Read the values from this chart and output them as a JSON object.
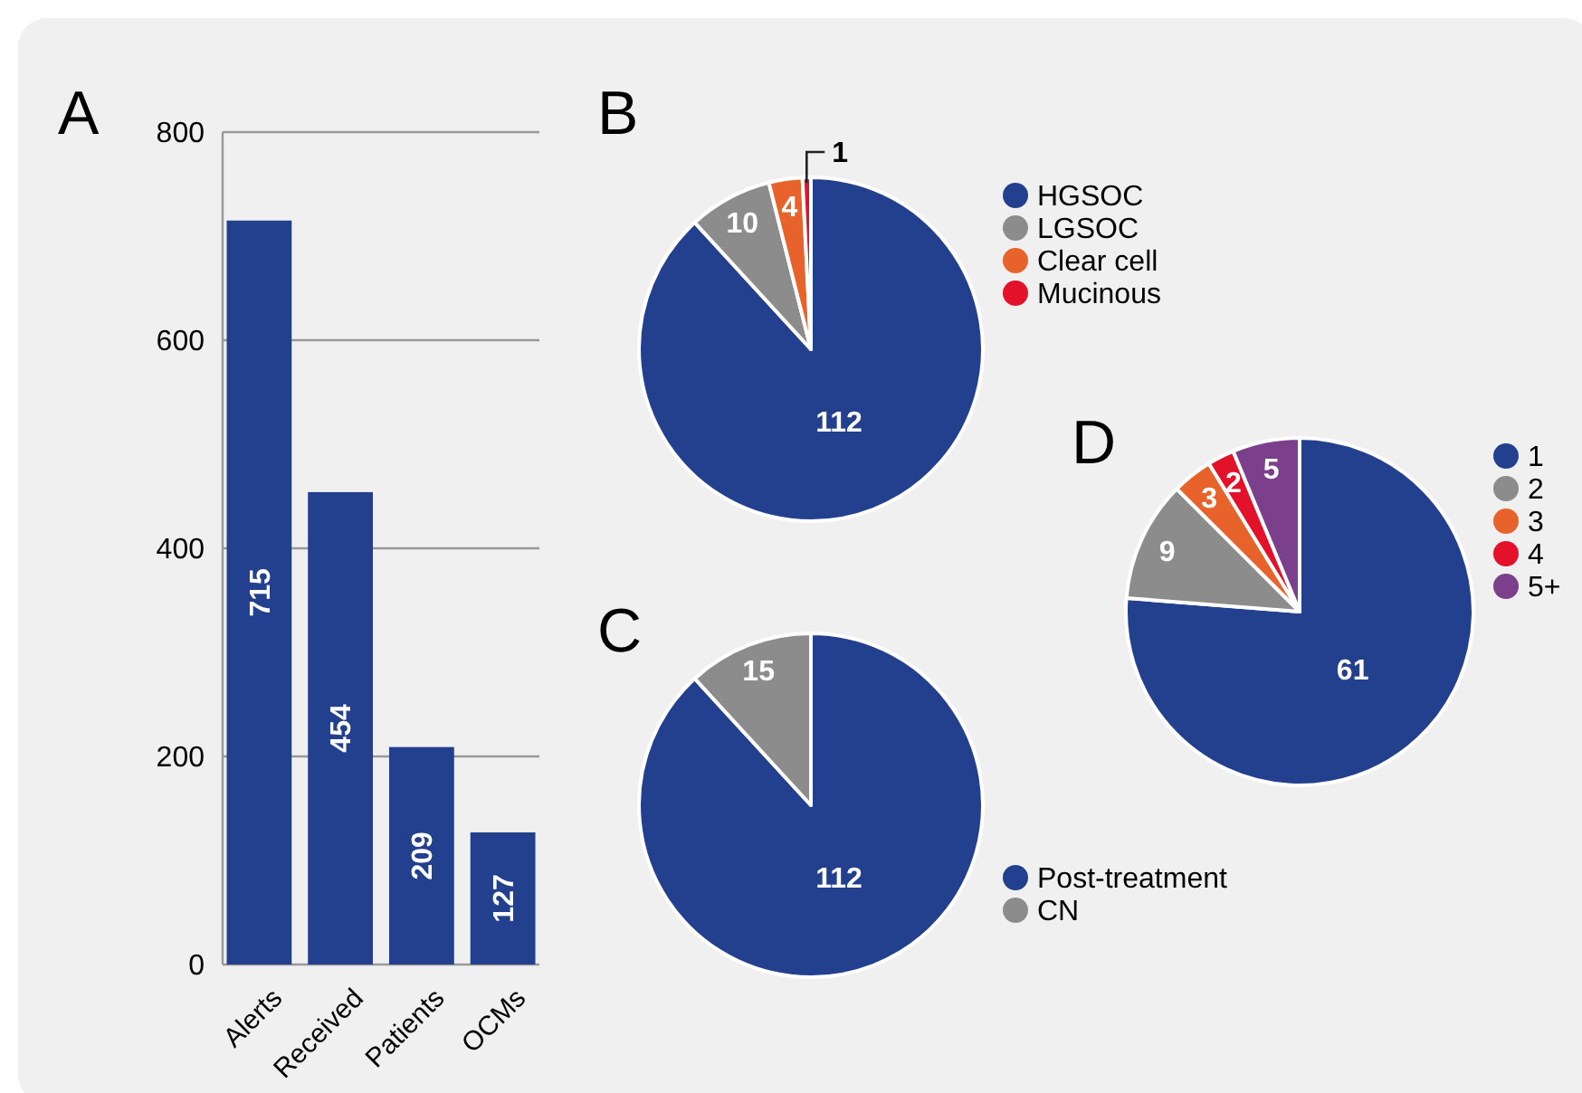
{
  "chart_data": [
    {
      "type": "bar",
      "title": "A",
      "categories": [
        "Alerts",
        "Received",
        "Patients",
        "OCMs"
      ],
      "values": [
        715,
        454,
        209,
        127
      ],
      "color": "#23408e",
      "ylim": [
        0,
        800
      ],
      "yticks": [
        0,
        200,
        400,
        600,
        800
      ],
      "grid": "y",
      "data_labels": true
    },
    {
      "type": "pie",
      "title": "B",
      "categories": [
        "HGSOC",
        "LGSOC",
        "Clear cell",
        "Mucinous"
      ],
      "values": [
        112,
        10,
        4,
        1
      ],
      "colors": [
        "#23408e",
        "#8c8c8c",
        "#e8632b",
        "#e4112a"
      ],
      "legend": "right",
      "data_labels": true
    },
    {
      "type": "pie",
      "title": "C",
      "categories": [
        "Post-treatment",
        "CN"
      ],
      "values": [
        112,
        15
      ],
      "colors": [
        "#23408e",
        "#8c8c8c"
      ],
      "legend": "bottom right",
      "data_labels": true
    },
    {
      "type": "pie",
      "title": "D",
      "categories": [
        "1",
        "2",
        "3",
        "4",
        "5+"
      ],
      "values": [
        61,
        9,
        3,
        2,
        5
      ],
      "colors": [
        "#23408e",
        "#8c8c8c",
        "#e8632b",
        "#e4112a",
        "#7b3f8c"
      ],
      "legend": "right",
      "data_labels": true
    }
  ]
}
